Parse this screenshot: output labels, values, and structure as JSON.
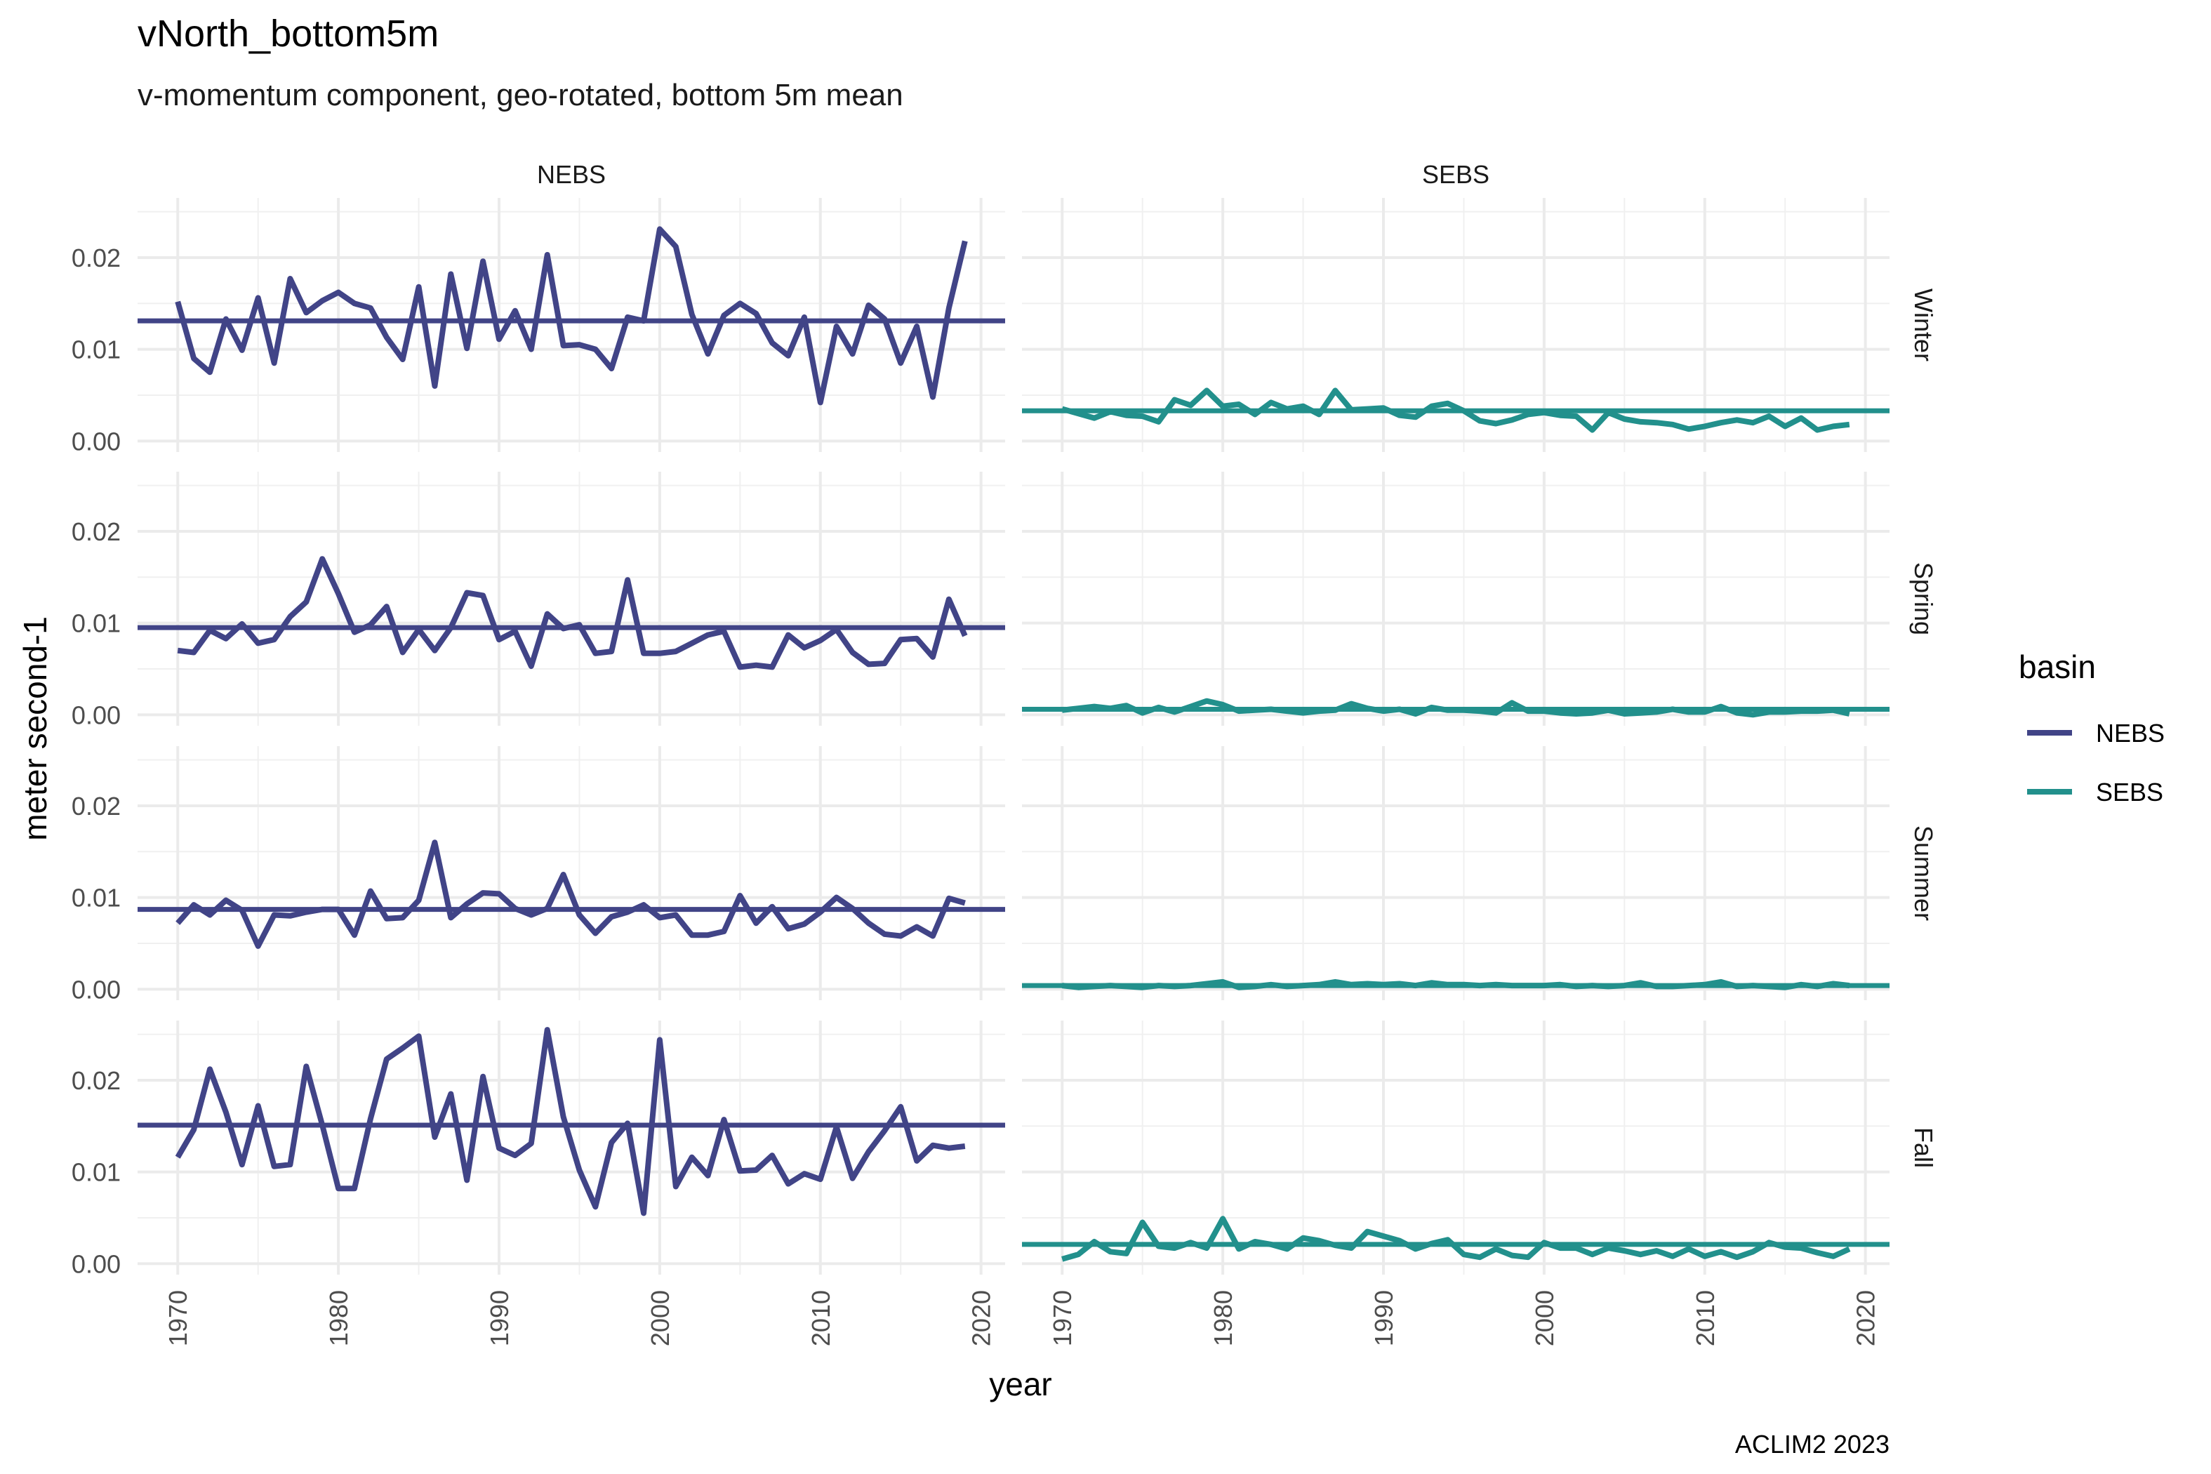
{
  "chart_data": {
    "type": "line",
    "title": "vNorth_bottom5m",
    "subtitle": "v-momentum component, geo-rotated, bottom 5m mean",
    "xlabel": "year",
    "ylabel": "meter second-1",
    "caption": "ACLIM2 2023",
    "xlim": [
      1967.5,
      2021.5
    ],
    "ylim": [
      -0.0012,
      0.0265
    ],
    "x_ticks": [
      1970,
      1980,
      1990,
      2000,
      2010,
      2020
    ],
    "x_tick_labels": [
      "1970",
      "1980",
      "1990",
      "2000",
      "2010",
      "2020"
    ],
    "y_ticks": [
      0,
      0.01,
      0.02
    ],
    "y_tick_labels": [
      "0.00",
      "0.01",
      "0.02"
    ],
    "grid": true,
    "legend_position": "right",
    "legend": {
      "title": "basin",
      "items": [
        {
          "label": "NEBS",
          "color": "#414487"
        },
        {
          "label": "SEBS",
          "color": "#22908C"
        }
      ]
    },
    "facet_columns": [
      "NEBS",
      "SEBS"
    ],
    "facet_rows": [
      "Winter",
      "Spring",
      "Summer",
      "Fall"
    ],
    "series_colors": {
      "NEBS": "#414487",
      "SEBS": "#22908C"
    },
    "x": [
      1970,
      1971,
      1972,
      1973,
      1974,
      1975,
      1976,
      1977,
      1978,
      1979,
      1980,
      1981,
      1982,
      1983,
      1984,
      1985,
      1986,
      1987,
      1988,
      1989,
      1990,
      1991,
      1992,
      1993,
      1994,
      1995,
      1996,
      1997,
      1998,
      1999,
      2000,
      2001,
      2002,
      2003,
      2004,
      2005,
      2006,
      2007,
      2008,
      2009,
      2010,
      2011,
      2012,
      2013,
      2014,
      2015,
      2016,
      2017,
      2018,
      2019
    ],
    "panels": [
      {
        "basin": "NEBS",
        "season": "Winter",
        "mean": 0.0131,
        "values": [
          0.0152,
          0.009,
          0.0075,
          0.0133,
          0.0099,
          0.0156,
          0.0085,
          0.0177,
          0.014,
          0.0153,
          0.0162,
          0.015,
          0.0145,
          0.0113,
          0.0089,
          0.0168,
          0.006,
          0.0182,
          0.0101,
          0.0196,
          0.0111,
          0.0142,
          0.01,
          0.0203,
          0.0104,
          0.0105,
          0.01,
          0.0079,
          0.0135,
          0.0131,
          0.0231,
          0.0212,
          0.0138,
          0.0095,
          0.0137,
          0.015,
          0.0139,
          0.0107,
          0.0093,
          0.0135,
          0.0042,
          0.0125,
          0.0095,
          0.0148,
          0.0133,
          0.0085,
          0.0125,
          0.0048,
          0.0145,
          0.0218
        ]
      },
      {
        "basin": "SEBS",
        "season": "Winter",
        "mean": 0.0033,
        "values": [
          0.0035,
          0.003,
          0.0025,
          0.0032,
          0.0028,
          0.0027,
          0.0021,
          0.0045,
          0.0039,
          0.0055,
          0.0038,
          0.004,
          0.0029,
          0.0042,
          0.0035,
          0.0038,
          0.0029,
          0.0055,
          0.0034,
          0.0035,
          0.0036,
          0.0028,
          0.0026,
          0.0038,
          0.0041,
          0.0033,
          0.0022,
          0.0019,
          0.0023,
          0.0029,
          0.0031,
          0.0028,
          0.0027,
          0.0012,
          0.0031,
          0.0024,
          0.0021,
          0.002,
          0.0018,
          0.0013,
          0.0016,
          0.002,
          0.0023,
          0.002,
          0.0027,
          0.0016,
          0.0025,
          0.0012,
          0.0016,
          0.0018
        ]
      },
      {
        "basin": "NEBS",
        "season": "Spring",
        "mean": 0.0095,
        "values": [
          0.007,
          0.0068,
          0.0092,
          0.0083,
          0.0099,
          0.0078,
          0.0082,
          0.0107,
          0.0123,
          0.017,
          0.0132,
          0.009,
          0.0098,
          0.0118,
          0.0068,
          0.0093,
          0.007,
          0.0095,
          0.0133,
          0.013,
          0.0082,
          0.0091,
          0.0053,
          0.011,
          0.0094,
          0.0098,
          0.0067,
          0.0069,
          0.0147,
          0.0067,
          0.0067,
          0.0069,
          0.0078,
          0.0087,
          0.0091,
          0.0052,
          0.0054,
          0.0052,
          0.0087,
          0.0073,
          0.0081,
          0.0093,
          0.0068,
          0.0055,
          0.0056,
          0.0082,
          0.0083,
          0.0063,
          0.0126,
          0.0086
        ]
      },
      {
        "basin": "SEBS",
        "season": "Spring",
        "mean": 0.0006,
        "values": [
          0.0005,
          0.0007,
          0.0009,
          0.0007,
          0.001,
          0.0002,
          0.0008,
          0.0003,
          0.0009,
          0.0015,
          0.0011,
          0.0004,
          0.0005,
          0.0006,
          0.0004,
          0.0002,
          0.0004,
          0.0005,
          0.0012,
          0.0007,
          0.0004,
          0.0006,
          0.0001,
          0.0008,
          0.0005,
          0.0005,
          0.0004,
          0.0002,
          0.0013,
          0.0004,
          0.0004,
          0.0002,
          0.0001,
          0.0002,
          0.0005,
          0.0001,
          0.0002,
          0.0003,
          0.0006,
          0.0003,
          0.0003,
          0.0009,
          0.0002,
          0.0,
          0.0003,
          0.0003,
          0.0004,
          0.0004,
          0.0005,
          0.0001
        ]
      },
      {
        "basin": "NEBS",
        "season": "Summer",
        "mean": 0.0087,
        "values": [
          0.0072,
          0.0092,
          0.0081,
          0.0097,
          0.0086,
          0.0047,
          0.0081,
          0.008,
          0.0084,
          0.0087,
          0.0087,
          0.0059,
          0.0107,
          0.0077,
          0.0078,
          0.0097,
          0.016,
          0.0078,
          0.0093,
          0.0105,
          0.0104,
          0.0088,
          0.0081,
          0.0088,
          0.0125,
          0.0081,
          0.0061,
          0.0079,
          0.0084,
          0.0092,
          0.0078,
          0.0081,
          0.0059,
          0.0059,
          0.0063,
          0.0102,
          0.0072,
          0.009,
          0.0066,
          0.0071,
          0.0084,
          0.01,
          0.0088,
          0.0072,
          0.006,
          0.0058,
          0.0068,
          0.0058,
          0.0099,
          0.0094
        ]
      },
      {
        "basin": "SEBS",
        "season": "Summer",
        "mean": 0.0004,
        "values": [
          0.0004,
          0.0002,
          0.0003,
          0.0004,
          0.0003,
          0.0002,
          0.0004,
          0.0003,
          0.0004,
          0.0006,
          0.0008,
          0.0002,
          0.0003,
          0.0005,
          0.0003,
          0.0004,
          0.0005,
          0.0008,
          0.0005,
          0.0006,
          0.0005,
          0.0006,
          0.0004,
          0.0007,
          0.0005,
          0.0005,
          0.0004,
          0.0005,
          0.0004,
          0.0004,
          0.0004,
          0.0005,
          0.0003,
          0.0004,
          0.0003,
          0.0004,
          0.0007,
          0.0003,
          0.0003,
          0.0004,
          0.0005,
          0.0008,
          0.0003,
          0.0004,
          0.0003,
          0.0002,
          0.0005,
          0.0003,
          0.0006,
          0.0004
        ]
      },
      {
        "basin": "NEBS",
        "season": "Fall",
        "mean": 0.0151,
        "values": [
          0.0116,
          0.0146,
          0.0212,
          0.0165,
          0.0108,
          0.0172,
          0.0106,
          0.0108,
          0.0215,
          0.0151,
          0.0082,
          0.0082,
          0.0158,
          0.0223,
          0.0235,
          0.0248,
          0.0138,
          0.0185,
          0.0091,
          0.0204,
          0.0126,
          0.0118,
          0.0131,
          0.0255,
          0.016,
          0.0102,
          0.0062,
          0.0132,
          0.0153,
          0.0055,
          0.0244,
          0.0084,
          0.0116,
          0.0096,
          0.0157,
          0.0101,
          0.0102,
          0.0118,
          0.0087,
          0.0098,
          0.0092,
          0.0149,
          0.0093,
          0.0122,
          0.0145,
          0.0171,
          0.0112,
          0.0129,
          0.0126,
          0.0128
        ]
      },
      {
        "basin": "SEBS",
        "season": "Fall",
        "mean": 0.0021,
        "values": [
          0.0005,
          0.001,
          0.0024,
          0.0013,
          0.0011,
          0.0045,
          0.0019,
          0.0017,
          0.0023,
          0.0017,
          0.0049,
          0.0016,
          0.0024,
          0.0021,
          0.0016,
          0.0028,
          0.0025,
          0.002,
          0.0017,
          0.0035,
          0.003,
          0.0025,
          0.0016,
          0.0022,
          0.0026,
          0.001,
          0.0007,
          0.0016,
          0.0009,
          0.0007,
          0.0023,
          0.0017,
          0.0017,
          0.001,
          0.0017,
          0.0014,
          0.001,
          0.0014,
          0.0008,
          0.0016,
          0.0008,
          0.0013,
          0.0007,
          0.0013,
          0.0023,
          0.0018,
          0.0017,
          0.0012,
          0.0008,
          0.0016
        ]
      }
    ]
  }
}
